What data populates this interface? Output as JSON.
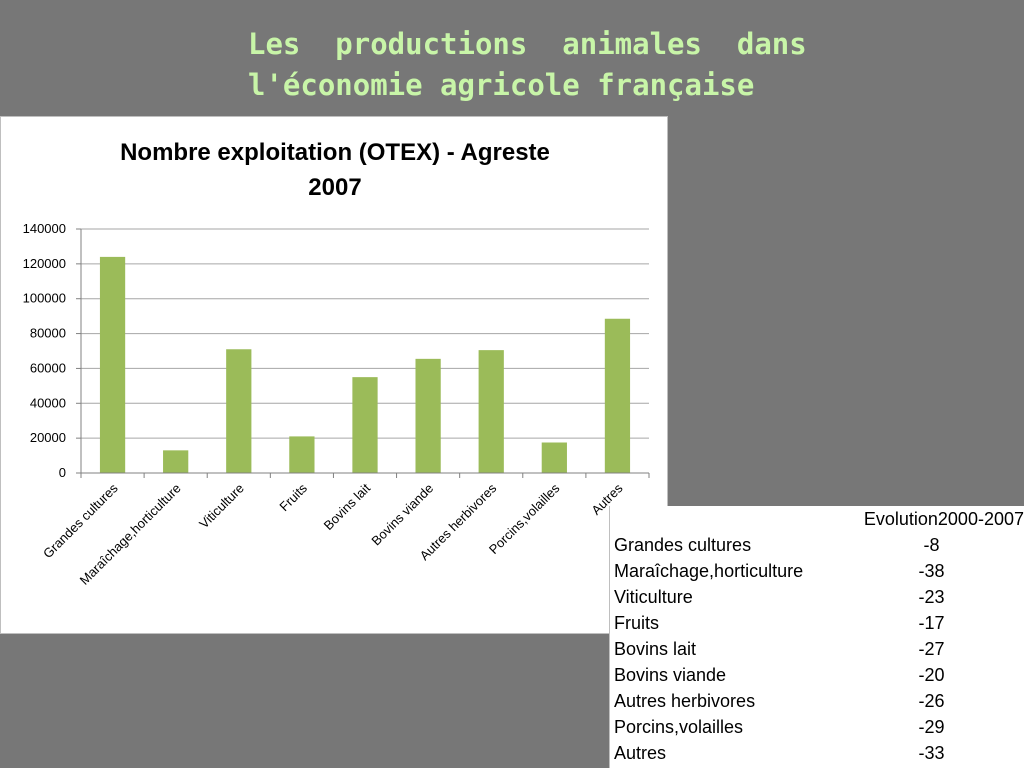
{
  "slide": {
    "title_line1": "Les  productions  animales  dans",
    "title_line2": "l'économie agricole française"
  },
  "chart_data": {
    "type": "bar",
    "title": "Nombre exploitation (OTEX) - Agreste 2007",
    "title_line1": "Nombre exploitation (OTEX) - Agreste",
    "title_line2": "2007",
    "categories": [
      "Grandes cultures",
      "Maraîchage,horticulture",
      "Viticulture",
      "Fruits",
      "Bovins lait",
      "Bovins viande",
      "Autres herbivores",
      "Porcins,volailles",
      "Autres"
    ],
    "values": [
      124000,
      13000,
      71000,
      21000,
      55000,
      65500,
      70500,
      17500,
      88500
    ],
    "ylim": [
      0,
      140000
    ],
    "yticks": [
      0,
      20000,
      40000,
      60000,
      80000,
      100000,
      120000,
      140000
    ],
    "bar_color": "#9bbb59",
    "grid": true,
    "legend": "none",
    "xlabel": "",
    "ylabel": ""
  },
  "table": {
    "header_value": "Evolution2000-2007",
    "rows": [
      {
        "label": "Grandes cultures",
        "value": "-8"
      },
      {
        "label": "Maraîchage,horticulture",
        "value": "-38"
      },
      {
        "label": "Viticulture",
        "value": "-23"
      },
      {
        "label": "Fruits",
        "value": "-17"
      },
      {
        "label": "Bovins lait",
        "value": "-27"
      },
      {
        "label": "Bovins viande",
        "value": "-20"
      },
      {
        "label": "Autres herbivores",
        "value": "-26"
      },
      {
        "label": "Porcins,volailles",
        "value": "-29"
      },
      {
        "label": "Autres",
        "value": "-33"
      }
    ]
  }
}
